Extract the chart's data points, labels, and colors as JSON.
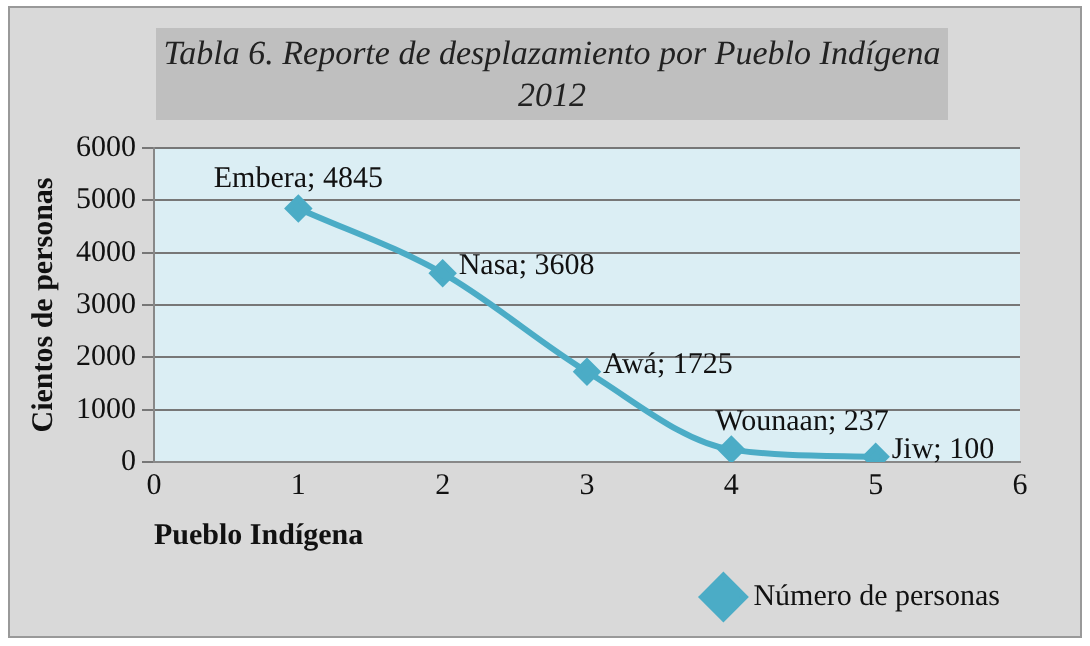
{
  "chart_data": {
    "type": "line",
    "title": "Tabla 6. Reporte de desplazamiento por Pueblo Indígena 2012",
    "xlabel": "Pueblo Indígena",
    "ylabel": "Cientos de personas",
    "x": [
      1,
      2,
      3,
      4,
      5
    ],
    "series": [
      {
        "name": "Número de personas",
        "color": "#4bacc6",
        "values": [
          4845,
          3608,
          1725,
          237,
          100
        ],
        "value_labels": [
          "Embera; 4845",
          "Nasa; 3608",
          "Awá; 1725",
          "Wounaan; 237",
          "Jiw; 100"
        ]
      }
    ],
    "xlim": [
      0,
      6
    ],
    "xticks": [
      0,
      1,
      2,
      3,
      4,
      5,
      6
    ],
    "ylim": [
      0,
      6000
    ],
    "yticks": [
      0,
      1000,
      2000,
      3000,
      4000,
      5000,
      6000
    ],
    "grid": "y",
    "legend": "bottom right",
    "marker": "diamond",
    "line_style": "solid"
  }
}
